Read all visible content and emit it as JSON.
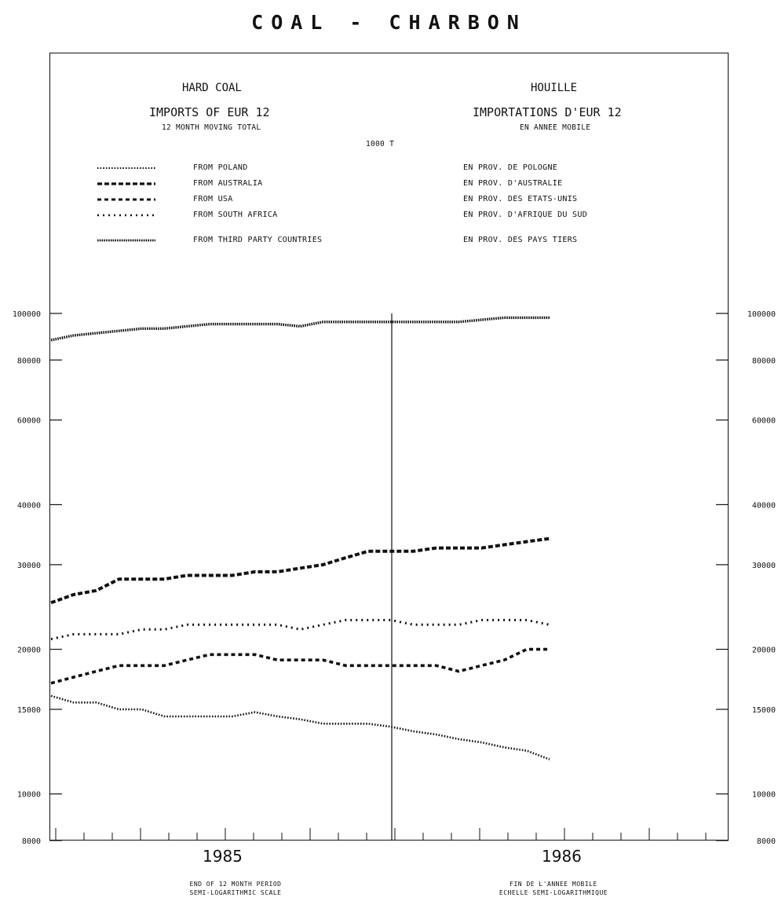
{
  "page": {
    "title": "COAL - CHARBON",
    "en_title": "HARD COAL",
    "en_subtitle": "IMPORTS OF EUR 12",
    "en_note": "12 MONTH MOVING TOTAL",
    "fr_title": "HOUILLE",
    "fr_subtitle": "IMPORTATIONS D'EUR 12",
    "fr_note": "EN ANNEE MOBILE",
    "unit": "1000 T",
    "legend": [
      {
        "en": "FROM POLAND",
        "fr": "EN PROV. DE POLOGNE",
        "style": "dense-dots"
      },
      {
        "en": "FROM AUSTRALIA",
        "fr": "EN PROV. D'AUSTRALIE",
        "style": "dash-dot"
      },
      {
        "en": "FROM USA",
        "fr": "EN PROV. DES ETATS-UNIS",
        "style": "short-dash"
      },
      {
        "en": "FROM SOUTH AFRICA",
        "fr": "EN PROV. D'AFRIQUE DU SUD",
        "style": "dots"
      },
      {
        "en": "FROM THIRD PARTY COUNTRIES",
        "fr": "EN PROV. DES PAYS TIERS",
        "style": "heavy-dots"
      }
    ],
    "footer_en": [
      "END OF 12 MONTH PERIOD",
      "SEMI-LOGARITHMIC SCALE"
    ],
    "footer_fr": [
      "FIN DE L'ANNEE MOBILE",
      "ECHELLE SEMI-LOGARITHMIQUE"
    ]
  },
  "chart_data": {
    "type": "line",
    "yscale": "log",
    "ylim": [
      8000,
      100000
    ],
    "yticks": [
      100000,
      80000,
      60000,
      40000,
      30000,
      20000,
      15000,
      10000,
      8000
    ],
    "ytick_labels_left": [
      "100000",
      "80000",
      "60000",
      "40000",
      "30000",
      "20000",
      "15000",
      "10000",
      "8000"
    ],
    "ytick_labels_right": [
      "100000",
      "80000",
      "60000",
      "40000",
      "30000",
      "20000",
      "15000",
      "10000",
      "8000"
    ],
    "x_labels": [
      "1985",
      "1986"
    ],
    "months_per_year": 12,
    "x_range_months": [
      1,
      24
    ],
    "grid": false,
    "year_separator_after_month": 12,
    "series": [
      {
        "name": "FROM THIRD PARTY COUNTRIES",
        "style": "heavy-dots",
        "values": [
          88000,
          90000,
          91000,
          92000,
          93000,
          93000,
          94000,
          95000,
          95000,
          95000,
          95000,
          94000,
          96000,
          96000,
          96000,
          96000,
          96000,
          96000,
          96000,
          97000,
          98000,
          98000,
          98000
        ]
      },
      {
        "name": "FROM AUSTRALIA",
        "style": "dash-dot",
        "values": [
          25000,
          26000,
          26500,
          28000,
          28000,
          28000,
          28500,
          28500,
          28500,
          29000,
          29000,
          29500,
          30000,
          31000,
          32000,
          32000,
          32000,
          32500,
          32500,
          32500,
          33000,
          33500,
          34000
        ]
      },
      {
        "name": "FROM SOUTH AFRICA",
        "style": "dots",
        "values": [
          21000,
          21500,
          21500,
          21500,
          22000,
          22000,
          22500,
          22500,
          22500,
          22500,
          22500,
          22000,
          22500,
          23000,
          23000,
          23000,
          22500,
          22500,
          22500,
          23000,
          23000,
          23000,
          22500
        ]
      },
      {
        "name": "FROM USA",
        "style": "short-dash",
        "values": [
          17000,
          17500,
          18000,
          18500,
          18500,
          18500,
          19000,
          19500,
          19500,
          19500,
          19000,
          19000,
          19000,
          18500,
          18500,
          18500,
          18500,
          18500,
          18000,
          18500,
          19000,
          20000,
          20000
        ]
      },
      {
        "name": "FROM POLAND",
        "style": "dense-dots",
        "values": [
          16000,
          15500,
          15500,
          15000,
          15000,
          14500,
          14500,
          14500,
          14500,
          14800,
          14500,
          14300,
          14000,
          14000,
          14000,
          13800,
          13500,
          13300,
          13000,
          12800,
          12500,
          12300,
          11800
        ]
      }
    ]
  }
}
